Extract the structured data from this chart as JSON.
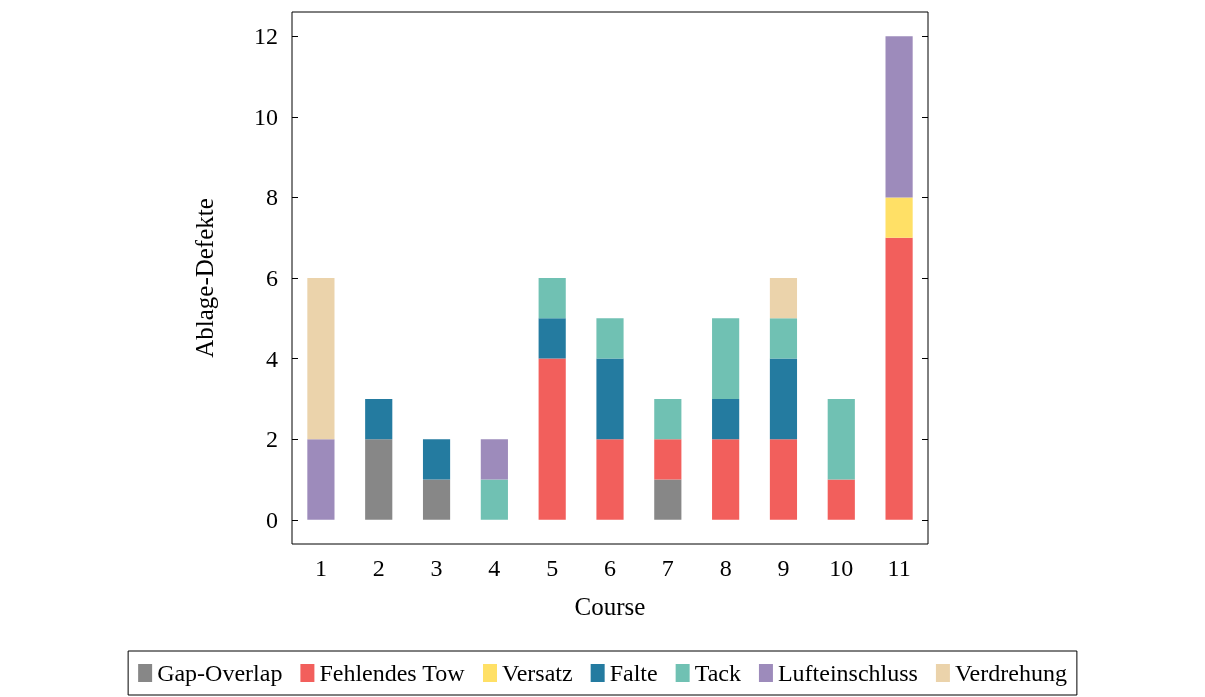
{
  "chart_data": {
    "type": "bar",
    "stacked": true,
    "xlabel": "Course",
    "ylabel": "Ablage-Defekte",
    "categories": [
      "1",
      "2",
      "3",
      "4",
      "5",
      "6",
      "7",
      "8",
      "9",
      "10",
      "11"
    ],
    "series": [
      {
        "name": "Gap-Overlap",
        "color": "#878787",
        "values": [
          null,
          2,
          1,
          null,
          null,
          null,
          1,
          null,
          null,
          null,
          null
        ]
      },
      {
        "name": "Fehlendes Tow",
        "color": "#f25f5c",
        "values": [
          null,
          null,
          null,
          null,
          4,
          2,
          1,
          2,
          2,
          1,
          7
        ]
      },
      {
        "name": "Versatz",
        "color": "#ffe066",
        "values": [
          null,
          null,
          null,
          null,
          null,
          null,
          null,
          null,
          null,
          null,
          1
        ]
      },
      {
        "name": "Falte",
        "color": "#247ba0",
        "values": [
          null,
          1,
          1,
          null,
          1,
          2,
          null,
          1,
          2,
          null,
          null
        ]
      },
      {
        "name": "Tack",
        "color": "#70c1b3",
        "values": [
          null,
          null,
          null,
          1,
          1,
          1,
          1,
          2,
          1,
          2,
          null
        ]
      },
      {
        "name": "Lufteinschluss",
        "color": "#9d8bbb",
        "values": [
          2,
          null,
          null,
          1,
          null,
          null,
          null,
          null,
          null,
          null,
          4
        ]
      },
      {
        "name": "Verdrehung",
        "color": "#ebd3ab",
        "values": [
          4,
          null,
          null,
          null,
          null,
          null,
          null,
          null,
          1,
          null,
          null
        ]
      }
    ],
    "ylim": [
      -0.6,
      12.6
    ],
    "yticks": [
      0,
      2,
      4,
      6,
      8,
      10,
      12
    ],
    "grid": false,
    "legend": "bottom"
  }
}
